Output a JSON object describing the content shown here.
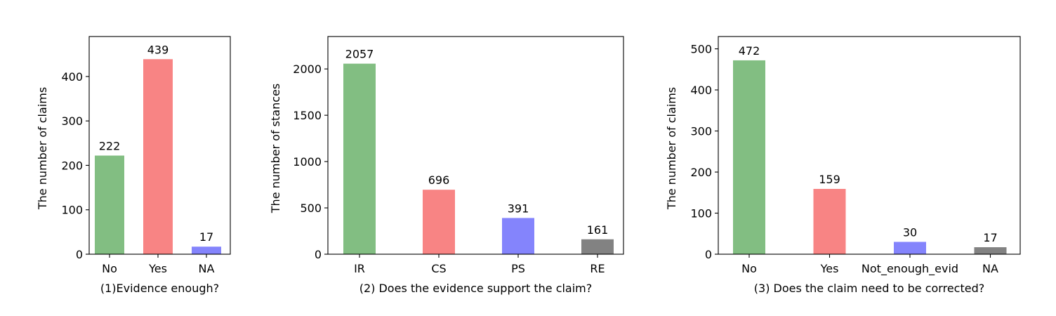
{
  "chart_data": [
    {
      "type": "bar",
      "title": "",
      "xlabel": "(1)Evidence enough?",
      "ylabel": "The number of claims",
      "categories": [
        "No",
        "Yes",
        "NA"
      ],
      "values": [
        222,
        439,
        17
      ],
      "data_labels": [
        "222",
        "439",
        "17"
      ],
      "colors": [
        "#82be82",
        "#f88484",
        "#8484fc"
      ],
      "ylim": [
        0,
        490
      ],
      "yticks": [
        0,
        100,
        200,
        300,
        400
      ],
      "grid": false
    },
    {
      "type": "bar",
      "title": "",
      "xlabel": "(2) Does the evidence support the claim?",
      "ylabel": "The number of stances",
      "categories": [
        "IR",
        "CS",
        "PS",
        "RE"
      ],
      "values": [
        2057,
        696,
        391,
        161
      ],
      "data_labels": [
        "2057",
        "696",
        "391",
        "161"
      ],
      "colors": [
        "#82be82",
        "#f88484",
        "#8484fc",
        "#828282"
      ],
      "ylim": [
        0,
        2350
      ],
      "yticks": [
        0,
        500,
        1000,
        1500,
        2000
      ],
      "grid": false
    },
    {
      "type": "bar",
      "title": "",
      "xlabel": "(3) Does the claim need to be corrected?",
      "ylabel": "The number of claims",
      "categories": [
        "No",
        "Yes",
        "Not_enough_evid",
        "NA"
      ],
      "values": [
        472,
        159,
        30,
        17
      ],
      "data_labels": [
        "472",
        "159",
        "30",
        "17"
      ],
      "colors": [
        "#82be82",
        "#f88484",
        "#8484fc",
        "#828282"
      ],
      "ylim": [
        0,
        530
      ],
      "yticks": [
        0,
        100,
        200,
        300,
        400,
        500
      ],
      "grid": false
    }
  ]
}
